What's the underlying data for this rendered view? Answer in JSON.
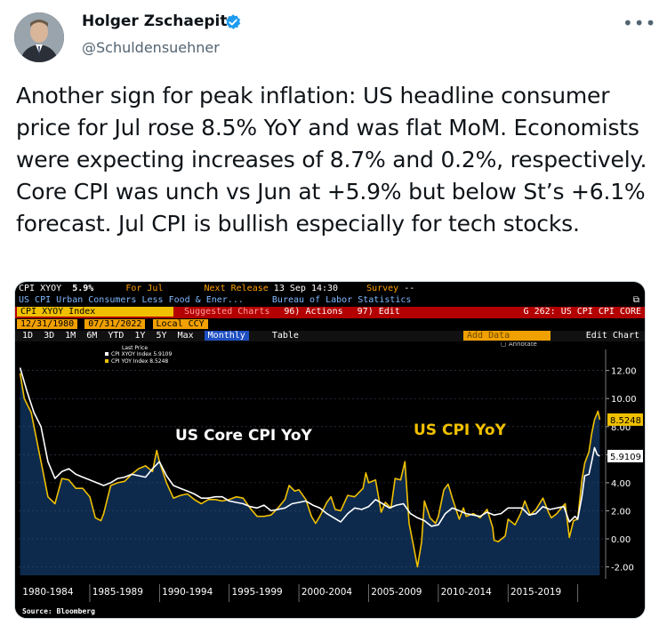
{
  "author": {
    "name": "Holger Zschaepitz",
    "handle": "@Schuldensuehner",
    "verified_color": "#1d9bf0"
  },
  "tweet": {
    "text": "Another sign for peak inflation: US headline consumer price for Jul rose 8.5% YoY and was flat MoM. Economists were expecting increases of 8.7% and 0.2%, respectively. Core CPI was unch vs Jun at +5.9% but below St’s +6.1% forecast. Jul CPI is bullish especially for tech stocks.",
    "more_icon": "more-options-icon"
  },
  "terminal": {
    "ticker": "CPI XYOY",
    "ticker_value": "5.9%",
    "for": "For Jul",
    "next_release_label": "Next Release",
    "next_release": "13 Sep 14:30",
    "survey_label": "Survey",
    "survey": "--",
    "description": "US CPI Urban Consumers Less Food & Ener...",
    "source": "Bureau of Labor Statistics",
    "index_box": "CPI XYOY Index",
    "suggested": "Suggested Charts",
    "actions": "96) Actions",
    "edit": "97) Edit",
    "chart_code": "G 262: US CPI CPI CORE",
    "date_start": "12/31/1980",
    "date_end": "07/31/2022",
    "currency": "Local CCY",
    "periods": [
      "1D",
      "3D",
      "1M",
      "6M",
      "YTD",
      "1Y",
      "5Y",
      "Max"
    ],
    "frequency": "Monthly",
    "table": "Table",
    "add_data": "Add Data",
    "edit_chart": "Edit Chart",
    "annotate": "Annotate",
    "legend_title": "Last Price",
    "legend": [
      {
        "label": "CPI XYOY Index 5.9109",
        "color": "#ffffff"
      },
      {
        "label": "CPI YOY Index  8.5248",
        "color": "#f0c000"
      }
    ],
    "source_note": "Source: Bloomberg"
  },
  "chart_data": {
    "type": "line",
    "x_labels": [
      "1980-1984",
      "1985-1989",
      "1990-1994",
      "1995-1999",
      "2000-2004",
      "2005-2009",
      "2010-2014",
      "2015-2019"
    ],
    "y_ticks": [
      "12.00",
      "10.00",
      "8.00",
      "6.00",
      "4.00",
      "2.00",
      "0.00",
      "-2.00"
    ],
    "ylim": [
      -2.6,
      13.5
    ],
    "xlim": [
      1980.9,
      2023.0
    ],
    "annotations": {
      "core": "US Core CPI YoY",
      "headline": "US CPI YoY"
    },
    "last_values": {
      "core": "5.9109",
      "headline": "8.5248"
    },
    "series": [
      {
        "name": "CPI XYOY Index",
        "color": "#ffffff",
        "points": [
          [
            1981.0,
            12.2
          ],
          [
            1981.5,
            10.5
          ],
          [
            1982.0,
            9.0
          ],
          [
            1982.5,
            8.0
          ],
          [
            1983.0,
            5.5
          ],
          [
            1983.5,
            4.3
          ],
          [
            1984.0,
            4.8
          ],
          [
            1984.5,
            5.0
          ],
          [
            1985.0,
            4.6
          ],
          [
            1985.5,
            4.4
          ],
          [
            1986.0,
            4.2
          ],
          [
            1986.5,
            4.0
          ],
          [
            1987.0,
            3.8
          ],
          [
            1987.5,
            4.0
          ],
          [
            1988.0,
            4.3
          ],
          [
            1988.5,
            4.4
          ],
          [
            1989.0,
            4.6
          ],
          [
            1989.5,
            4.5
          ],
          [
            1990.0,
            4.4
          ],
          [
            1990.5,
            5.0
          ],
          [
            1991.0,
            5.5
          ],
          [
            1991.5,
            4.5
          ],
          [
            1992.0,
            3.8
          ],
          [
            1992.5,
            3.6
          ],
          [
            1993.0,
            3.4
          ],
          [
            1993.5,
            3.2
          ],
          [
            1994.0,
            2.9
          ],
          [
            1994.5,
            2.9
          ],
          [
            1995.0,
            3.0
          ],
          [
            1995.5,
            3.0
          ],
          [
            1996.0,
            2.7
          ],
          [
            1996.5,
            2.6
          ],
          [
            1997.0,
            2.5
          ],
          [
            1997.5,
            2.3
          ],
          [
            1998.0,
            2.2
          ],
          [
            1998.5,
            2.4
          ],
          [
            1999.0,
            2.0
          ],
          [
            1999.5,
            2.1
          ],
          [
            2000.0,
            2.2
          ],
          [
            2000.5,
            2.5
          ],
          [
            2001.0,
            2.6
          ],
          [
            2001.5,
            2.7
          ],
          [
            2002.0,
            2.4
          ],
          [
            2002.5,
            2.2
          ],
          [
            2003.0,
            1.8
          ],
          [
            2003.5,
            1.5
          ],
          [
            2004.0,
            1.2
          ],
          [
            2004.5,
            1.8
          ],
          [
            2005.0,
            2.2
          ],
          [
            2005.5,
            2.1
          ],
          [
            2006.0,
            2.3
          ],
          [
            2006.5,
            2.8
          ],
          [
            2007.0,
            2.5
          ],
          [
            2007.5,
            2.2
          ],
          [
            2008.0,
            2.4
          ],
          [
            2008.5,
            2.5
          ],
          [
            2009.0,
            1.8
          ],
          [
            2009.5,
            1.5
          ],
          [
            2010.0,
            1.3
          ],
          [
            2010.5,
            0.9
          ],
          [
            2011.0,
            1.0
          ],
          [
            2011.5,
            1.8
          ],
          [
            2012.0,
            2.2
          ],
          [
            2012.5,
            2.0
          ],
          [
            2013.0,
            1.8
          ],
          [
            2013.5,
            1.7
          ],
          [
            2014.0,
            1.6
          ],
          [
            2014.5,
            1.9
          ],
          [
            2015.0,
            1.7
          ],
          [
            2015.5,
            1.8
          ],
          [
            2016.0,
            2.2
          ],
          [
            2016.5,
            2.2
          ],
          [
            2017.0,
            2.2
          ],
          [
            2017.5,
            1.7
          ],
          [
            2018.0,
            1.8
          ],
          [
            2018.5,
            2.3
          ],
          [
            2019.0,
            2.1
          ],
          [
            2019.5,
            2.2
          ],
          [
            2020.0,
            2.3
          ],
          [
            2020.4,
            1.2
          ],
          [
            2020.8,
            1.6
          ],
          [
            2021.0,
            1.4
          ],
          [
            2021.3,
            3.0
          ],
          [
            2021.5,
            4.5
          ],
          [
            2021.8,
            4.6
          ],
          [
            2022.0,
            5.5
          ],
          [
            2022.2,
            6.5
          ],
          [
            2022.4,
            6.0
          ],
          [
            2022.58,
            5.9
          ]
        ]
      },
      {
        "name": "CPI YOY Index",
        "color": "#f0c000",
        "points": [
          [
            1981.0,
            11.8
          ],
          [
            1981.3,
            10.0
          ],
          [
            1981.8,
            9.0
          ],
          [
            1982.2,
            7.0
          ],
          [
            1982.6,
            5.0
          ],
          [
            1983.0,
            3.0
          ],
          [
            1983.5,
            2.5
          ],
          [
            1984.0,
            4.3
          ],
          [
            1984.5,
            4.2
          ],
          [
            1985.0,
            3.6
          ],
          [
            1985.5,
            3.6
          ],
          [
            1986.0,
            3.0
          ],
          [
            1986.4,
            1.5
          ],
          [
            1986.8,
            1.3
          ],
          [
            1987.0,
            1.8
          ],
          [
            1987.5,
            3.8
          ],
          [
            1988.0,
            4.0
          ],
          [
            1988.5,
            4.1
          ],
          [
            1989.0,
            4.6
          ],
          [
            1989.5,
            5.0
          ],
          [
            1990.0,
            5.2
          ],
          [
            1990.5,
            4.8
          ],
          [
            1990.8,
            6.3
          ],
          [
            1991.0,
            5.5
          ],
          [
            1991.5,
            4.0
          ],
          [
            1992.0,
            2.9
          ],
          [
            1992.5,
            3.1
          ],
          [
            1993.0,
            3.2
          ],
          [
            1993.5,
            2.8
          ],
          [
            1994.0,
            2.5
          ],
          [
            1994.5,
            2.8
          ],
          [
            1995.0,
            2.8
          ],
          [
            1995.5,
            2.7
          ],
          [
            1996.0,
            2.8
          ],
          [
            1996.5,
            3.0
          ],
          [
            1997.0,
            2.9
          ],
          [
            1997.5,
            2.2
          ],
          [
            1998.0,
            1.6
          ],
          [
            1998.5,
            1.6
          ],
          [
            1999.0,
            1.7
          ],
          [
            1999.5,
            2.2
          ],
          [
            2000.0,
            2.8
          ],
          [
            2000.3,
            3.8
          ],
          [
            2000.7,
            3.4
          ],
          [
            2001.0,
            3.5
          ],
          [
            2001.5,
            2.8
          ],
          [
            2001.9,
            1.6
          ],
          [
            2002.2,
            1.1
          ],
          [
            2002.5,
            1.6
          ],
          [
            2003.0,
            2.6
          ],
          [
            2003.3,
            3.0
          ],
          [
            2003.6,
            2.1
          ],
          [
            2004.0,
            2.0
          ],
          [
            2004.5,
            3.1
          ],
          [
            2005.0,
            3.0
          ],
          [
            2005.6,
            3.6
          ],
          [
            2005.8,
            4.7
          ],
          [
            2006.0,
            4.0
          ],
          [
            2006.5,
            4.2
          ],
          [
            2006.9,
            1.9
          ],
          [
            2007.2,
            2.6
          ],
          [
            2007.6,
            2.2
          ],
          [
            2007.9,
            4.3
          ],
          [
            2008.3,
            4.2
          ],
          [
            2008.6,
            5.5
          ],
          [
            2008.9,
            1.1
          ],
          [
            2009.2,
            -0.4
          ],
          [
            2009.5,
            -2.0
          ],
          [
            2009.8,
            -0.2
          ],
          [
            2010.0,
            2.7
          ],
          [
            2010.4,
            1.5
          ],
          [
            2010.8,
            1.1
          ],
          [
            2011.0,
            1.6
          ],
          [
            2011.4,
            3.5
          ],
          [
            2011.7,
            3.9
          ],
          [
            2012.0,
            2.9
          ],
          [
            2012.5,
            1.4
          ],
          [
            2012.8,
            2.2
          ],
          [
            2013.0,
            1.6
          ],
          [
            2013.5,
            1.8
          ],
          [
            2014.0,
            1.5
          ],
          [
            2014.5,
            2.1
          ],
          [
            2014.9,
            0.8
          ],
          [
            2015.0,
            -0.1
          ],
          [
            2015.3,
            -0.2
          ],
          [
            2015.8,
            0.2
          ],
          [
            2016.0,
            1.4
          ],
          [
            2016.5,
            1.0
          ],
          [
            2016.9,
            1.8
          ],
          [
            2017.2,
            2.7
          ],
          [
            2017.6,
            1.7
          ],
          [
            2018.0,
            2.1
          ],
          [
            2018.5,
            2.9
          ],
          [
            2018.9,
            1.9
          ],
          [
            2019.1,
            1.5
          ],
          [
            2019.5,
            1.8
          ],
          [
            2019.9,
            2.3
          ],
          [
            2020.1,
            2.5
          ],
          [
            2020.4,
            0.1
          ],
          [
            2020.7,
            1.3
          ],
          [
            2021.0,
            1.4
          ],
          [
            2021.3,
            4.2
          ],
          [
            2021.5,
            5.4
          ],
          [
            2021.8,
            6.2
          ],
          [
            2022.0,
            7.5
          ],
          [
            2022.2,
            8.5
          ],
          [
            2022.45,
            9.1
          ],
          [
            2022.58,
            8.5
          ]
        ]
      }
    ]
  }
}
